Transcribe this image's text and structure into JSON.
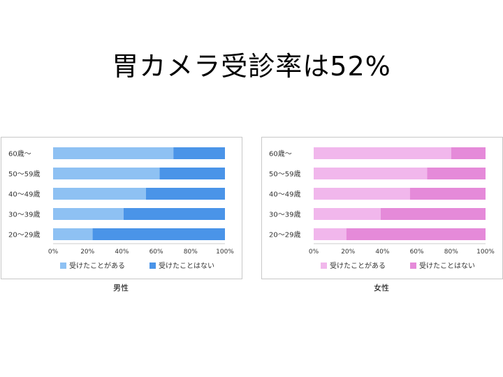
{
  "slide": {
    "title": "胃カメラ受診率は52%"
  },
  "chart_data": [
    {
      "type": "bar",
      "orientation": "horizontal",
      "stacked": true,
      "caption": "男性",
      "categories": [
        "60歳〜",
        "50〜59歳",
        "40〜49歳",
        "30〜39歳",
        "20〜29歳"
      ],
      "series": [
        {
          "name": "受けたことがある",
          "color": "#8ec1f3",
          "values": [
            70,
            62,
            54,
            41,
            23
          ]
        },
        {
          "name": "受けたことはない",
          "color": "#4a94e8",
          "values": [
            30,
            38,
            46,
            59,
            77
          ]
        }
      ],
      "xlim": [
        0,
        100
      ],
      "xticks": [
        "0%",
        "20%",
        "40%",
        "60%",
        "80%",
        "100%"
      ],
      "legend": "bottom"
    },
    {
      "type": "bar",
      "orientation": "horizontal",
      "stacked": true,
      "caption": "女性",
      "categories": [
        "60歳〜",
        "50〜59歳",
        "40〜49歳",
        "30〜39歳",
        "20〜29歳"
      ],
      "series": [
        {
          "name": "受けたことがある",
          "color": "#f1b7ec",
          "values": [
            80,
            66,
            56,
            39,
            19
          ]
        },
        {
          "name": "受けたことはない",
          "color": "#e58ad9",
          "values": [
            20,
            34,
            44,
            61,
            81
          ]
        }
      ],
      "xlim": [
        0,
        100
      ],
      "xticks": [
        "0%",
        "20%",
        "40%",
        "60%",
        "80%",
        "100%"
      ],
      "legend": "bottom"
    }
  ]
}
